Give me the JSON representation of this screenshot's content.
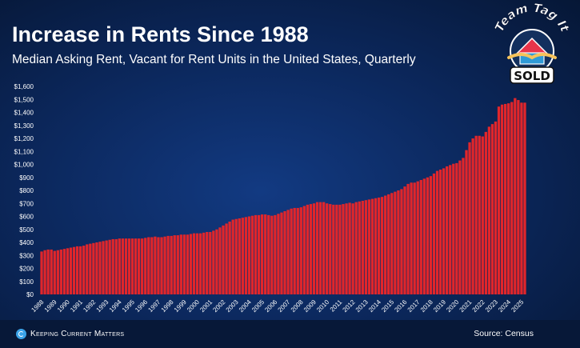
{
  "title": "Increase in Rents Since 1988",
  "subtitle": "Median Asking Rent, Vacant for Rent Units in the United States, Quarterly",
  "footer": {
    "brand": "Keeping Current Matters",
    "source": "Source: Census"
  },
  "logo": {
    "top_text": "Team Tag It",
    "bottom_text": "SOLD"
  },
  "colors": {
    "bar": "#e0262b",
    "background": "#0b2659",
    "text": "#ffffff"
  },
  "chart_data": {
    "type": "bar",
    "title": "Increase in Rents Since 1988",
    "subtitle": "Median Asking Rent, Vacant for Rent Units in the United States, Quarterly",
    "ylim": [
      0,
      1600
    ],
    "yticks": [
      0,
      100,
      200,
      300,
      400,
      500,
      600,
      700,
      800,
      900,
      1000,
      1100,
      1200,
      1300,
      1400,
      1500,
      1600
    ],
    "ytick_labels": [
      "$0",
      "$100",
      "$200",
      "$300",
      "$400",
      "$500",
      "$600",
      "$700",
      "$800",
      "$900",
      "$1,000",
      "$1,100",
      "$1,200",
      "$1,300",
      "$1,400",
      "$1,500",
      "$1,600"
    ],
    "year_labels": [
      "1988",
      "1989",
      "1990",
      "1991",
      "1992",
      "1993",
      "1994",
      "1995",
      "1996",
      "1997",
      "1998",
      "1999",
      "2000",
      "2001",
      "2002",
      "2003",
      "2004",
      "2005",
      "2006",
      "2007",
      "2008",
      "2009",
      "2010",
      "2011",
      "2012",
      "2013",
      "2014",
      "2015",
      "2016",
      "2017",
      "2018",
      "2019",
      "2020",
      "2021",
      "2022",
      "2023",
      "2024",
      "2025"
    ],
    "grid": false,
    "legend": "none",
    "yearly_values": [
      [
        330,
        340,
        345,
        345
      ],
      [
        335,
        340,
        345,
        350
      ],
      [
        355,
        360,
        365,
        370
      ],
      [
        370,
        375,
        385,
        390
      ],
      [
        395,
        400,
        405,
        410
      ],
      [
        415,
        420,
        425,
        425
      ],
      [
        430,
        430,
        430,
        430
      ],
      [
        430,
        430,
        430,
        430
      ],
      [
        435,
        440,
        440,
        445
      ],
      [
        440,
        440,
        445,
        450
      ],
      [
        450,
        455,
        455,
        460
      ],
      [
        460,
        460,
        465,
        470
      ],
      [
        470,
        470,
        475,
        480
      ],
      [
        480,
        490,
        500,
        515
      ],
      [
        530,
        545,
        560,
        575
      ],
      [
        580,
        585,
        590,
        595
      ],
      [
        600,
        605,
        610,
        610
      ],
      [
        615,
        615,
        610,
        605
      ],
      [
        610,
        620,
        630,
        640
      ],
      [
        650,
        660,
        665,
        665
      ],
      [
        670,
        680,
        690,
        695
      ],
      [
        700,
        710,
        710,
        710
      ],
      [
        700,
        695,
        690,
        690
      ],
      [
        690,
        695,
        700,
        705
      ],
      [
        700,
        710,
        715,
        720
      ],
      [
        725,
        730,
        735,
        740
      ],
      [
        745,
        750,
        760,
        770
      ],
      [
        780,
        790,
        800,
        810
      ],
      [
        830,
        850,
        860,
        860
      ],
      [
        870,
        880,
        890,
        900
      ],
      [
        910,
        930,
        950,
        960
      ],
      [
        970,
        985,
        995,
        1005
      ],
      [
        1010,
        1030,
        1050,
        1110
      ],
      [
        1170,
        1200,
        1220,
        1220
      ],
      [
        1215,
        1250,
        1290,
        1310
      ],
      [
        1330,
        1445,
        1460,
        1465
      ],
      [
        1470,
        1480,
        1510,
        1495
      ],
      [
        1475,
        1475
      ]
    ]
  }
}
